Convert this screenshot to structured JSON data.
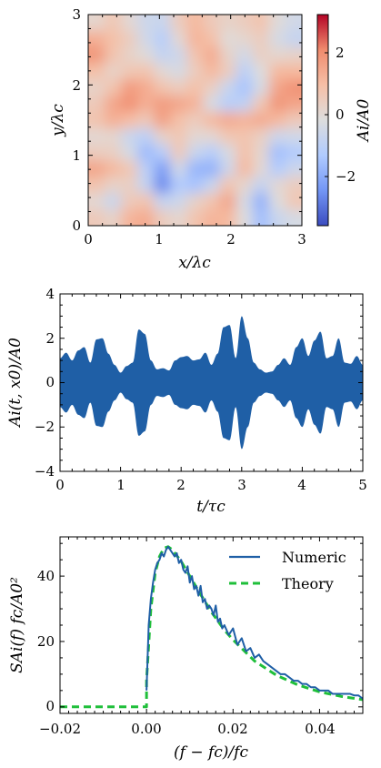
{
  "chart_data": [
    {
      "type": "heatmap",
      "xlabel": "x/λc",
      "ylabel": "y/λc",
      "xlim": [
        0,
        3
      ],
      "ylim": [
        0,
        3
      ],
      "xticks": [
        "0",
        "1",
        "2",
        "3"
      ],
      "yticks": [
        "0",
        "1",
        "2",
        "3"
      ],
      "colorbar": {
        "label": "Ai/A0",
        "range": [
          -3.2,
          3.2
        ],
        "ticks": [
          "2",
          "0",
          "−2"
        ],
        "tick_values": [
          2,
          0,
          -2
        ],
        "colormap": [
          "#3b4cc0",
          "#7396f5",
          "#b0cbff",
          "#dddddd",
          "#f6bfa6",
          "#f08b6d",
          "#b40426"
        ]
      },
      "field": [
        [
          0.3,
          0.8,
          0.2,
          -0.4,
          -0.5,
          0.6,
          1.2,
          0.7,
          0.4,
          0.6,
          0.9,
          0.1,
          -0.3
        ],
        [
          1.4,
          1.0,
          0.6,
          -0.3,
          -0.9,
          0.2,
          1.3,
          1.0,
          0.1,
          0.3,
          0.6,
          -0.2,
          -0.6
        ],
        [
          1.9,
          0.9,
          0.4,
          0.1,
          -0.6,
          -0.4,
          0.9,
          1.5,
          0.4,
          -0.3,
          0.5,
          0.3,
          0.4
        ],
        [
          1.0,
          0.4,
          0.8,
          0.9,
          0.2,
          -0.2,
          0.6,
          1.2,
          0.6,
          -0.8,
          0.0,
          1.2,
          1.2
        ],
        [
          0.4,
          0.9,
          1.8,
          1.5,
          0.9,
          0.6,
          1.0,
          0.5,
          -0.5,
          -1.2,
          -0.2,
          1.6,
          2.0
        ],
        [
          0.7,
          1.6,
          2.0,
          1.4,
          1.8,
          1.6,
          1.3,
          -0.2,
          -0.9,
          -0.7,
          0.8,
          1.9,
          1.6
        ],
        [
          0.9,
          1.4,
          1.1,
          0.7,
          1.7,
          1.0,
          0.6,
          1.2,
          1.5,
          1.3,
          1.5,
          1.2,
          0.7
        ],
        [
          0.2,
          0.3,
          -0.5,
          -0.8,
          0.4,
          0.8,
          0.2,
          0.2,
          0.8,
          0.9,
          0.5,
          -0.4,
          -0.3
        ],
        [
          0.6,
          0.5,
          -0.2,
          -1.4,
          -0.9,
          0.7,
          -0.5,
          -0.9,
          -0.2,
          1.0,
          0.3,
          -1.3,
          -1.0
        ],
        [
          1.6,
          1.2,
          0.8,
          -0.8,
          -2.0,
          -0.3,
          -1.5,
          -1.6,
          -0.4,
          1.2,
          0.2,
          -1.0,
          -0.4
        ],
        [
          0.9,
          0.4,
          0.5,
          -0.6,
          -2.3,
          -1.0,
          -1.2,
          -0.5,
          0.9,
          0.3,
          -0.6,
          0.2,
          0.6
        ],
        [
          0.2,
          -0.5,
          0.7,
          0.9,
          -0.6,
          -0.4,
          0.4,
          0.9,
          1.6,
          -0.2,
          -1.6,
          0.0,
          0.8
        ],
        [
          0.7,
          0.4,
          1.3,
          1.5,
          0.6,
          0.3,
          0.9,
          1.3,
          1.2,
          0.0,
          -1.3,
          -0.5,
          -0.2
        ]
      ]
    },
    {
      "type": "area",
      "xlabel": "t/τc",
      "ylabel": "Ai(t, x0)/A0",
      "xlim": [
        0,
        5
      ],
      "ylim": [
        -4,
        4
      ],
      "xticks": [
        "0",
        "1",
        "2",
        "3",
        "4",
        "5"
      ],
      "yticks": [
        "4",
        "2",
        "0",
        "−2",
        "−4"
      ],
      "color": "#1f5fa6",
      "envelope": {
        "x": [
          0,
          0.1,
          0.2,
          0.3,
          0.4,
          0.5,
          0.6,
          0.7,
          0.8,
          0.9,
          1.0,
          1.1,
          1.2,
          1.3,
          1.4,
          1.5,
          1.6,
          1.7,
          1.8,
          1.9,
          2.0,
          2.1,
          2.2,
          2.3,
          2.4,
          2.5,
          2.6,
          2.7,
          2.8,
          2.9,
          3.0,
          3.1,
          3.2,
          3.3,
          3.4,
          3.5,
          3.6,
          3.7,
          3.8,
          3.9,
          4.0,
          4.1,
          4.2,
          4.3,
          4.4,
          4.5,
          4.6,
          4.7,
          4.8,
          4.9,
          5.0
        ],
        "y": [
          1.1,
          1.35,
          1.0,
          1.45,
          1.6,
          0.9,
          1.95,
          2.0,
          1.3,
          0.8,
          0.45,
          0.75,
          0.9,
          2.4,
          2.2,
          1.0,
          0.6,
          0.65,
          0.55,
          1.0,
          1.15,
          1.2,
          1.0,
          1.05,
          1.35,
          0.8,
          1.3,
          2.5,
          2.6,
          1.1,
          3.0,
          2.0,
          0.9,
          0.6,
          0.45,
          0.5,
          0.8,
          1.1,
          0.8,
          1.6,
          2.0,
          1.2,
          1.9,
          2.3,
          1.1,
          1.2,
          2.0,
          0.9,
          0.85,
          1.2,
          0.8
        ]
      }
    },
    {
      "type": "line",
      "xlabel": "(f − fc)/fc",
      "ylabel": "SAi(f) fc/A0²",
      "xlim": [
        -0.02,
        0.05
      ],
      "ylim": [
        -2,
        52
      ],
      "xticks": [
        "−0.02",
        "0.00",
        "0.02",
        "0.04"
      ],
      "xtick_values": [
        -0.02,
        0.0,
        0.02,
        0.04
      ],
      "yticks": [
        "0",
        "20",
        "40"
      ],
      "ytick_values": [
        0,
        20,
        40
      ],
      "legend_position": "top-right",
      "series": [
        {
          "name": "Numeric",
          "color": "#1f5fa6",
          "style": "solid",
          "x": [
            0.0,
            0.0005,
            0.001,
            0.0015,
            0.002,
            0.0025,
            0.003,
            0.0035,
            0.004,
            0.0045,
            0.005,
            0.0055,
            0.006,
            0.0065,
            0.007,
            0.0075,
            0.008,
            0.0085,
            0.009,
            0.0095,
            0.01,
            0.0105,
            0.011,
            0.0115,
            0.012,
            0.0125,
            0.013,
            0.0135,
            0.014,
            0.0145,
            0.015,
            0.0155,
            0.016,
            0.0165,
            0.017,
            0.0175,
            0.018,
            0.019,
            0.02,
            0.021,
            0.022,
            0.023,
            0.024,
            0.025,
            0.026,
            0.027,
            0.028,
            0.029,
            0.03,
            0.031,
            0.032,
            0.033,
            0.034,
            0.035,
            0.036,
            0.037,
            0.038,
            0.039,
            0.04,
            0.041,
            0.042,
            0.043,
            0.044,
            0.045,
            0.046,
            0.047,
            0.048,
            0.049,
            0.05
          ],
          "y": [
            5,
            25,
            33,
            38,
            42,
            44,
            45,
            47,
            46,
            48,
            49,
            48,
            47,
            46,
            47,
            44,
            45,
            42,
            41,
            43,
            38,
            40,
            36,
            37,
            34,
            37,
            32,
            33,
            30,
            31,
            30,
            28,
            31,
            26,
            27,
            24,
            25,
            22,
            24,
            19,
            21,
            17,
            18,
            15,
            16,
            14,
            13,
            12,
            11,
            10,
            10,
            9,
            8,
            8,
            7,
            7,
            6,
            6,
            5,
            5,
            5,
            4,
            4,
            4,
            4,
            4,
            3.5,
            3.5,
            2.5
          ]
        },
        {
          "name": "Theory",
          "color": "#1fbf3a",
          "style": "dashed",
          "x": [
            -0.02,
            -0.01,
            0.0,
            0.0,
            0.001,
            0.002,
            0.003,
            0.004,
            0.005,
            0.006,
            0.008,
            0.01,
            0.012,
            0.015,
            0.018,
            0.02,
            0.025,
            0.03,
            0.035,
            0.04,
            0.045,
            0.05
          ],
          "y": [
            0,
            0,
            0,
            8,
            30,
            41,
            46,
            48.5,
            49,
            48,
            44.5,
            40,
            35.5,
            29,
            23.5,
            20.5,
            14,
            9.7,
            6.7,
            4.6,
            3.2,
            2.2
          ]
        }
      ]
    }
  ]
}
